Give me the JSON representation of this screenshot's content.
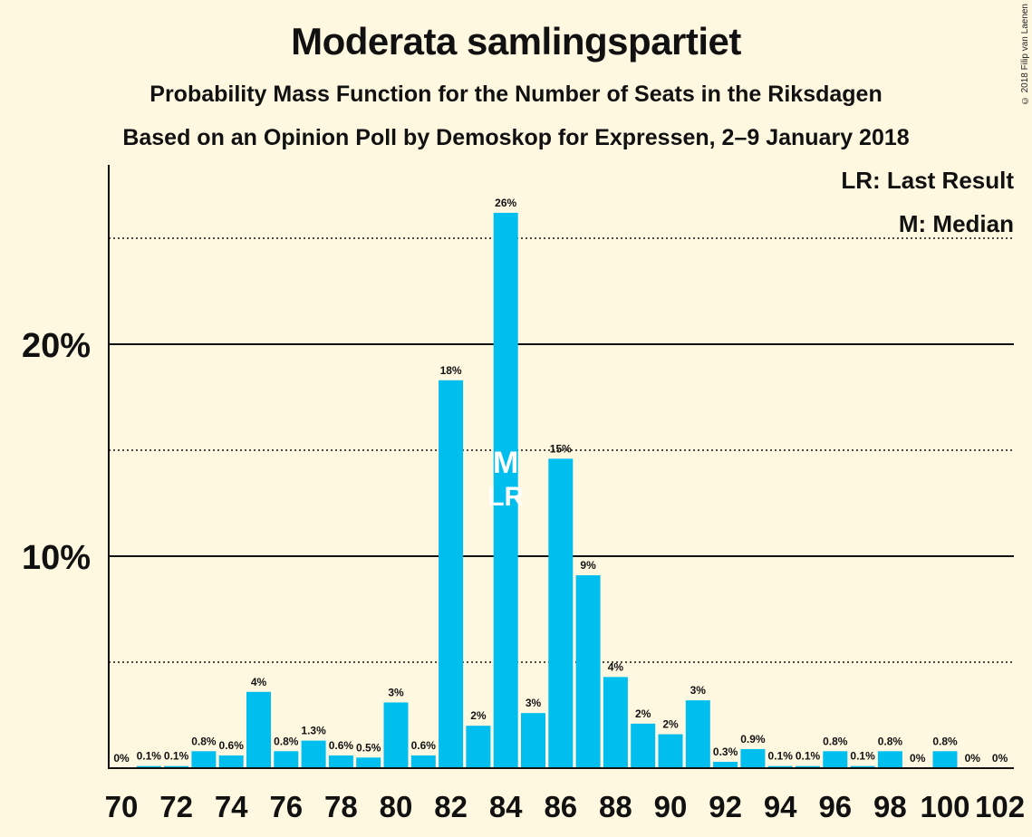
{
  "credit": "© 2018 Filip van Laenen",
  "legend": {
    "last_result": "LR: Last Result",
    "median": "M: Median"
  },
  "colors": {
    "background": "#FFF8E1",
    "bar": "#00BFEF",
    "text": "#111111"
  },
  "chart_data": {
    "type": "bar",
    "title": "Moderata samlingspartiet",
    "subtitle": "Probability Mass Function for the Number of Seats in the Riksdagen",
    "subtitle2": "Based on an Opinion Poll by Demoskop for Expressen, 2–9 January 2018",
    "xlabel": "",
    "ylabel": "",
    "ylim": [
      0,
      28.5
    ],
    "yticks_labeled": [
      10,
      20
    ],
    "ytick_labels": [
      "10%",
      "20%"
    ],
    "gridlines_dotted": [
      5,
      15,
      25
    ],
    "x": [
      70,
      71,
      72,
      73,
      74,
      75,
      76,
      77,
      78,
      79,
      80,
      81,
      82,
      83,
      84,
      85,
      86,
      87,
      88,
      89,
      90,
      91,
      92,
      93,
      94,
      95,
      96,
      97,
      98,
      99,
      100,
      101,
      102
    ],
    "xtick_labels": [
      "70",
      "72",
      "74",
      "76",
      "78",
      "80",
      "82",
      "84",
      "86",
      "88",
      "90",
      "92",
      "94",
      "96",
      "98",
      "100",
      "102"
    ],
    "values": [
      0,
      0.1,
      0.1,
      0.8,
      0.6,
      3.6,
      0.8,
      1.3,
      0.6,
      0.5,
      3.1,
      0.6,
      18.3,
      2.0,
      26.2,
      2.6,
      14.6,
      9.1,
      4.3,
      2.1,
      1.6,
      3.2,
      0.3,
      0.9,
      0.1,
      0.1,
      0.8,
      0.1,
      0.8,
      0,
      0.8,
      0,
      0
    ],
    "labels": [
      "0%",
      "0.1%",
      "0.1%",
      "0.8%",
      "0.6%",
      "4%",
      "0.8%",
      "1.3%",
      "0.6%",
      "0.5%",
      "3%",
      "0.6%",
      "18%",
      "2%",
      "26%",
      "3%",
      "15%",
      "9%",
      "4%",
      "2%",
      "2%",
      "3%",
      "0.3%",
      "0.9%",
      "0.1%",
      "0.1%",
      "0.8%",
      "0.1%",
      "0.8%",
      "0%",
      "0.8%",
      "0%",
      "0%"
    ],
    "median_seat": 84,
    "median_marker": "M",
    "last_result_seat": 84,
    "last_result_marker": "LR"
  }
}
